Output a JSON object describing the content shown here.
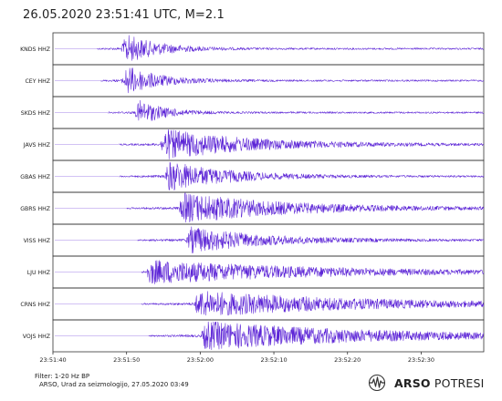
{
  "header": {
    "title": "26.05.2020  23:51:41 UTC, M=2.1"
  },
  "chart_data": {
    "type": "line",
    "title": "26.05.2020  23:51:41 UTC, M=2.1",
    "x_tick_labels": [
      "23:51:40",
      "23:51:50",
      "23:52:00",
      "23:52:10",
      "23:52:20",
      "23:52:30"
    ],
    "xlim_seconds_from_first_tick": [
      0,
      58.5
    ],
    "grid": false,
    "trace_color": "#5b23d6",
    "series": [
      {
        "name": "KNDS HHZ",
        "noise_start": 6.0,
        "onset": 9.2,
        "amplitude": 0.95,
        "decay": 4.5
      },
      {
        "name": "CEY HHZ",
        "noise_start": 6.5,
        "onset": 9.3,
        "amplitude": 0.95,
        "decay": 4.5
      },
      {
        "name": "SKDS HHZ",
        "noise_start": 7.5,
        "onset": 11.0,
        "amplitude": 0.8,
        "decay": 3.5
      },
      {
        "name": "JAVS HHZ",
        "noise_start": 9.0,
        "onset": 14.5,
        "amplitude": 1.0,
        "decay": 12.0
      },
      {
        "name": "GBAS HHZ",
        "noise_start": 9.0,
        "onset": 15.0,
        "amplitude": 1.0,
        "decay": 8.0
      },
      {
        "name": "GBRS HHZ",
        "noise_start": 10.0,
        "onset": 17.0,
        "amplitude": 1.0,
        "decay": 14.0
      },
      {
        "name": "VISS HHZ",
        "noise_start": 11.5,
        "onset": 18.0,
        "amplitude": 0.85,
        "decay": 10.0
      },
      {
        "name": "LJU HHZ",
        "noise_start": 12.0,
        "onset": 12.5,
        "amplitude": 0.8,
        "decay": 22.0
      },
      {
        "name": "CRNS HHZ",
        "noise_start": 12.0,
        "onset": 19.0,
        "amplitude": 0.85,
        "decay": 22.0
      },
      {
        "name": "VOJS HHZ",
        "noise_start": 13.0,
        "onset": 20.0,
        "amplitude": 0.95,
        "decay": 22.0
      }
    ]
  },
  "footer": {
    "filter": "Filter: 1-20 Hz BP",
    "credit": "ARSO, Urad za seizmologijo, 27.05.2020  03:49",
    "brand_bold": "ARSO",
    "brand_light": "POTRESI"
  },
  "icons": {
    "brand": "seismic-wave-icon"
  }
}
